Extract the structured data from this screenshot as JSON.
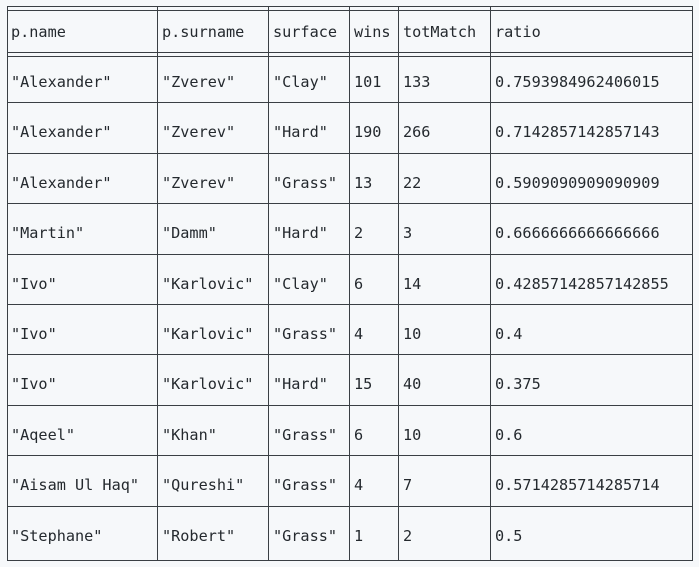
{
  "columns": [
    "p.name",
    "p.surname",
    "surface",
    "wins",
    "totMatch",
    "ratio"
  ],
  "rows": [
    [
      "\"Alexander\"",
      "\"Zverev\"",
      "\"Clay\"",
      "101",
      "133",
      "0.7593984962406015"
    ],
    [
      "\"Alexander\"",
      "\"Zverev\"",
      "\"Hard\"",
      "190",
      "266",
      "0.7142857142857143"
    ],
    [
      "\"Alexander\"",
      "\"Zverev\"",
      "\"Grass\"",
      "13",
      "22",
      "0.5909090909090909"
    ],
    [
      "\"Martin\"",
      "\"Damm\"",
      "\"Hard\"",
      "2",
      "3",
      "0.6666666666666666"
    ],
    [
      "\"Ivo\"",
      "\"Karlovic\"",
      "\"Clay\"",
      "6",
      "14",
      "0.42857142857142855"
    ],
    [
      "\"Ivo\"",
      "\"Karlovic\"",
      "\"Grass\"",
      "4",
      "10",
      "0.4"
    ],
    [
      "\"Ivo\"",
      "\"Karlovic\"",
      "\"Hard\"",
      "15",
      "40",
      "0.375"
    ],
    [
      "\"Aqeel\"",
      "\"Khan\"",
      "\"Grass\"",
      "6",
      "10",
      "0.6"
    ],
    [
      "\"Aisam Ul Haq\"",
      "\"Qureshi\"",
      "\"Grass\"",
      "4",
      "7",
      "0.5714285714285714"
    ],
    [
      "\"Stephane\"",
      "\"Robert\"",
      "\"Grass\"",
      "1",
      "2",
      "0.5"
    ]
  ]
}
